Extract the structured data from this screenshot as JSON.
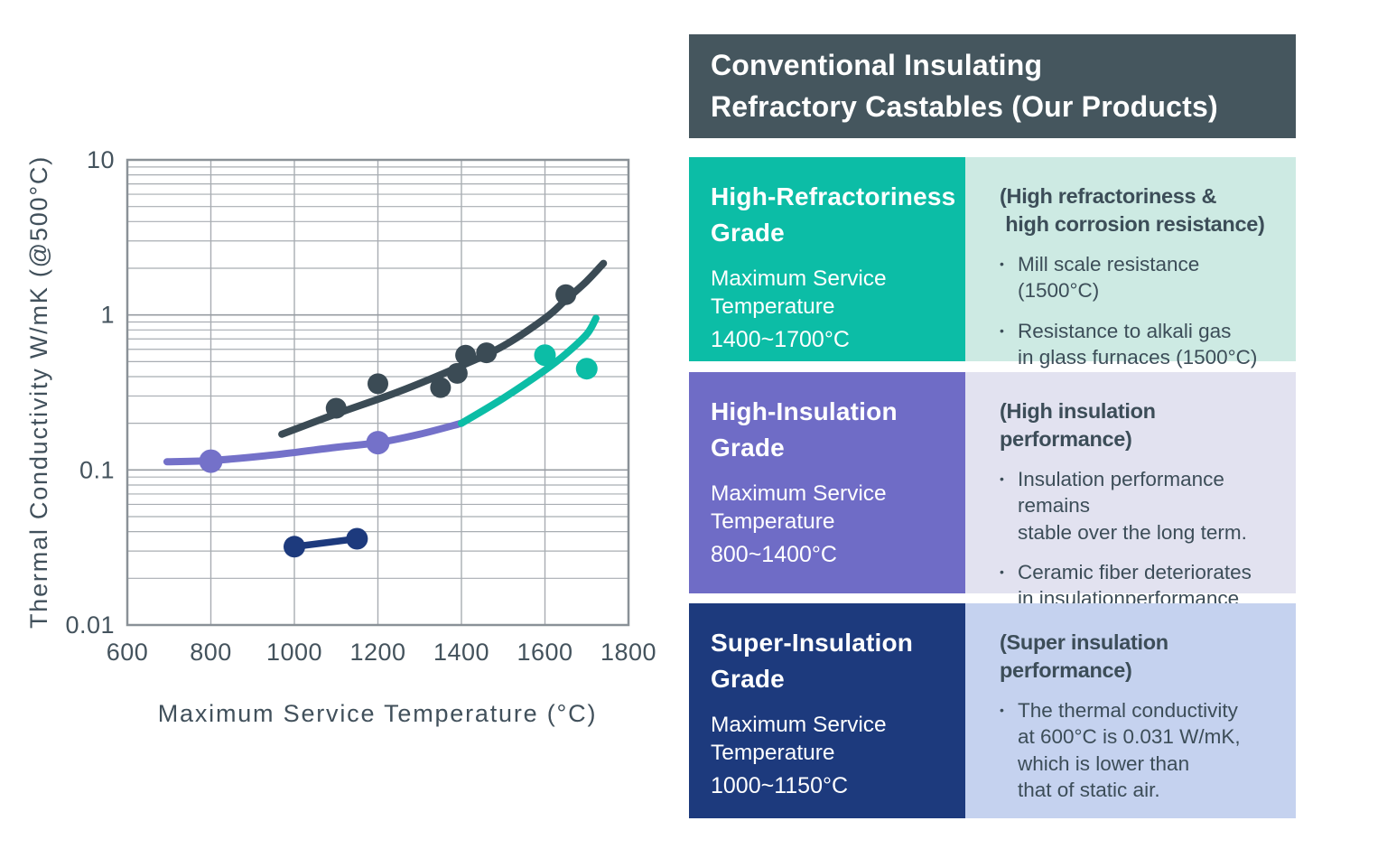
{
  "header": {
    "title_line1": "Conventional Insulating",
    "title_line2": "Refractory Castables (Our Products)",
    "background": "#45565e",
    "text_color": "#ffffff"
  },
  "bullet_glyph": "•",
  "chart_data": {
    "type": "scatter",
    "title": "",
    "xlabel": "Maximum Service Temperature (°C)",
    "ylabel": "Thermal Conductivity W/mK (@500°C)",
    "x_range": [
      600,
      1800
    ],
    "x_tick_step": 200,
    "x_ticks": [
      600,
      800,
      1000,
      1200,
      1400,
      1600,
      1800
    ],
    "y_scale": "log",
    "y_range": [
      0.01,
      10
    ],
    "y_ticks": [
      "10",
      "1",
      "0.1",
      "0.01"
    ],
    "grid": true,
    "grid_color": "#a8adb2",
    "major_grid_color": "#979ca2",
    "border_color": "#8a9197",
    "series": [
      {
        "name": "high-insulation-grade",
        "color": "#7471c9",
        "curve": [
          [
            695,
            0.113
          ],
          [
            800,
            0.115
          ],
          [
            950,
            0.125
          ],
          [
            1100,
            0.14
          ],
          [
            1200,
            0.15
          ],
          [
            1300,
            0.17
          ],
          [
            1400,
            0.2
          ]
        ],
        "points": [
          [
            800,
            0.114
          ],
          [
            1200,
            0.15
          ]
        ],
        "point_radius": 13,
        "stroke_width": 8
      },
      {
        "name": "high-refractoriness-grade",
        "color": "#0cbda6",
        "curve": [
          [
            1400,
            0.2
          ],
          [
            1500,
            0.29
          ],
          [
            1600,
            0.44
          ],
          [
            1650,
            0.56
          ],
          [
            1700,
            0.75
          ],
          [
            1722,
            0.95
          ]
        ],
        "points": [
          [
            1600,
            0.55
          ],
          [
            1700,
            0.45
          ]
        ],
        "point_radius": 12,
        "stroke_width": 8
      },
      {
        "name": "super-insulation-grade",
        "color": "#1d3a7d",
        "curve": [
          [
            1000,
            0.032
          ],
          [
            1150,
            0.036
          ]
        ],
        "points": [
          [
            1000,
            0.032
          ],
          [
            1150,
            0.036
          ]
        ],
        "point_radius": 12,
        "stroke_width": 7.5
      },
      {
        "name": "conventional-castables-trend",
        "color": "#3b4b55",
        "curve": [
          [
            970,
            0.17
          ],
          [
            1100,
            0.23
          ],
          [
            1250,
            0.32
          ],
          [
            1400,
            0.47
          ],
          [
            1500,
            0.63
          ],
          [
            1600,
            0.95
          ],
          [
            1650,
            1.25
          ],
          [
            1700,
            1.65
          ],
          [
            1740,
            2.15
          ]
        ],
        "points": [
          [
            1100,
            0.25
          ],
          [
            1200,
            0.36
          ],
          [
            1350,
            0.34
          ],
          [
            1390,
            0.42
          ],
          [
            1410,
            0.55
          ],
          [
            1460,
            0.57
          ],
          [
            1650,
            1.35
          ]
        ],
        "point_radius": 11.5,
        "stroke_width": 8
      }
    ]
  },
  "panels": [
    {
      "id": "high-refractoriness",
      "color": "#0cbda6",
      "light_color": "#cdeae3",
      "grade_title": "High-Refractoriness\nGrade",
      "subtitle": "Maximum Service\nTemperature",
      "temp_range": "1400~1700°C",
      "heading": "(High refractoriness &\n high corrosion resistance)",
      "bullets": [
        "Mill scale resistance (1500°C)",
        "Resistance to alkali gas\nin glass furnaces (1500°C)"
      ]
    },
    {
      "id": "high-insulation",
      "color": "#6f6cc6",
      "light_color": "#e2e2f0",
      "grade_title": "High-Insulation\nGrade",
      "subtitle": "Maximum Service\nTemperature",
      "temp_range": "800~1400°C",
      "heading": "(High insulation performance)",
      "bullets": [
        "Insulation performance remains\nstable over the long term.",
        "Ceramic fiber deteriorates\nin insulationperformance\nover several years."
      ]
    },
    {
      "id": "super-insulation",
      "color": "#1d3a7d",
      "light_color": "#c5d2ef",
      "grade_title": "Super-Insulation\nGrade",
      "subtitle": "Maximum Service\nTemperature",
      "temp_range": "1000~1150°C",
      "heading": "(Super insulation performance)",
      "bullets": [
        "The thermal conductivity\nat 600°C is 0.031 W/mK,\nwhich is lower than\nthat of static air."
      ]
    }
  ]
}
